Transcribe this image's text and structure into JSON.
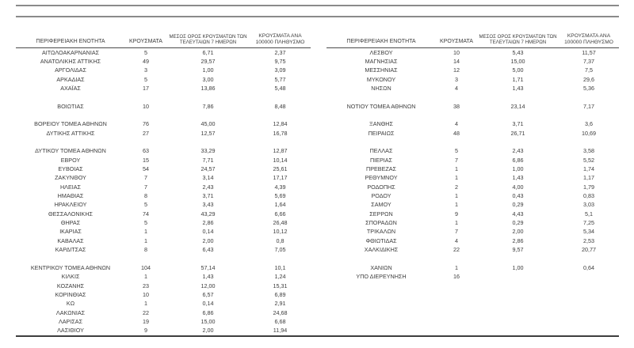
{
  "page": {
    "background": "#ffffff",
    "text_color": "#3c3c3c",
    "rule_color_light": "#8a8a8a",
    "rule_color_dark": "#3e3e3e"
  },
  "column_headers": {
    "region": "ΠΕΡΙΦΕΡΕΙΑΚΗ ΕΝΟΤΗΤΑ",
    "cases": "ΚΡΟΥΣΜΑΤΑ",
    "avg7": "ΜΕΣΟΣ ΟΡΟΣ ΚΡΟΥΣΜΑΤΩΝ ΤΩΝ ΤΕΛΕΥΤΑΙΩΝ 7 ΗΜΕΡΩΝ",
    "per100k": "ΚΡΟΥΣΜΑΤΑ ΑΝΑ 100000 ΠΛΗΘΥΣΜΟ"
  },
  "tables": [
    {
      "rows": [
        {
          "name": "ΑΙΤΩΛΟΑΚΑΡΝΑΝΙΑΣ",
          "cases": "5",
          "avg7": "6,71",
          "per100k": "2,37"
        },
        {
          "name": "ΑΝΑΤΟΛΙΚΗΣ ΑΤΤΙΚΗΣ",
          "cases": "49",
          "avg7": "29,57",
          "per100k": "9,75"
        },
        {
          "name": "ΑΡΓΟΛΙΔΑΣ",
          "cases": "3",
          "avg7": "1,00",
          "per100k": "3,09"
        },
        {
          "name": "ΑΡΚΑΔΙΑΣ",
          "cases": "5",
          "avg7": "3,00",
          "per100k": "5,77"
        },
        {
          "name": "ΑΧΑΪΑΣ",
          "cases": "17",
          "avg7": "13,86",
          "per100k": "5,48"
        },
        {
          "spacer": true
        },
        {
          "name": "ΒΟΙΩΤΙΑΣ",
          "cases": "10",
          "avg7": "7,86",
          "per100k": "8,48"
        },
        {
          "spacer": true
        },
        {
          "name": "ΒΟΡΕΙΟΥ ΤΟΜΕΑ ΑΘΗΝΩΝ",
          "cases": "76",
          "avg7": "45,00",
          "per100k": "12,84"
        },
        {
          "name": "ΔΥΤΙΚΗΣ ΑΤΤΙΚΗΣ",
          "cases": "27",
          "avg7": "12,57",
          "per100k": "16,78"
        },
        {
          "spacer": true
        },
        {
          "name": "ΔΥΤΙΚΟΥ ΤΟΜΕΑ ΑΘΗΝΩΝ",
          "cases": "63",
          "avg7": "33,29",
          "per100k": "12,87"
        },
        {
          "name": "ΕΒΡΟΥ",
          "cases": "15",
          "avg7": "7,71",
          "per100k": "10,14"
        },
        {
          "name": "ΕΥΒΟΙΑΣ",
          "cases": "54",
          "avg7": "24,57",
          "per100k": "25,61"
        },
        {
          "name": "ΖΑΚΥΝΘΟΥ",
          "cases": "7",
          "avg7": "3,14",
          "per100k": "17,17"
        },
        {
          "name": "ΗΛΕΙΑΣ",
          "cases": "7",
          "avg7": "2,43",
          "per100k": "4,39"
        },
        {
          "name": "ΗΜΑΘΙΑΣ",
          "cases": "8",
          "avg7": "3,71",
          "per100k": "5,69"
        },
        {
          "name": "ΗΡΑΚΛΕΙΟΥ",
          "cases": "5",
          "avg7": "3,43",
          "per100k": "1,64"
        },
        {
          "name": "ΘΕΣΣΑΛΟΝΙΚΗΣ",
          "cases": "74",
          "avg7": "43,29",
          "per100k": "6,66"
        },
        {
          "name": "ΘΗΡΑΣ",
          "cases": "5",
          "avg7": "2,86",
          "per100k": "26,48"
        },
        {
          "name": "ΙΚΑΡΙΑΣ",
          "cases": "1",
          "avg7": "0,14",
          "per100k": "10,12"
        },
        {
          "name": "ΚΑΒΑΛΑΣ",
          "cases": "1",
          "avg7": "2,00",
          "per100k": "0,8"
        },
        {
          "name": "ΚΑΡΔΙΤΣΑΣ",
          "cases": "8",
          "avg7": "6,43",
          "per100k": "7,05"
        },
        {
          "spacer": true
        },
        {
          "name": "ΚΕΝΤΡΙΚΟΥ ΤΟΜΕΑ ΑΘΗΝΩΝ",
          "cases": "104",
          "avg7": "57,14",
          "per100k": "10,1"
        },
        {
          "name": "ΚΙΛΚΙΣ",
          "cases": "1",
          "avg7": "1,43",
          "per100k": "1,24"
        },
        {
          "name": "ΚΟΖΑΝΗΣ",
          "cases": "23",
          "avg7": "12,00",
          "per100k": "15,31"
        },
        {
          "name": "ΚΟΡΙΝΘΙΑΣ",
          "cases": "10",
          "avg7": "6,57",
          "per100k": "6,89"
        },
        {
          "name": "ΚΩ",
          "cases": "1",
          "avg7": "0,14",
          "per100k": "2,91"
        },
        {
          "name": "ΛΑΚΩΝΙΑΣ",
          "cases": "22",
          "avg7": "6,86",
          "per100k": "24,68"
        },
        {
          "name": "ΛΑΡΙΣΑΣ",
          "cases": "19",
          "avg7": "15,00",
          "per100k": "6,68"
        },
        {
          "name": "ΛΑΣΙΘΙΟΥ",
          "cases": "9",
          "avg7": "2,00",
          "per100k": "11,94"
        }
      ]
    },
    {
      "rows": [
        {
          "name": "ΛΕΣΒΟΥ",
          "cases": "10",
          "avg7": "5,43",
          "per100k": "11,57"
        },
        {
          "name": "ΜΑΓΝΗΣΙΑΣ",
          "cases": "14",
          "avg7": "15,00",
          "per100k": "7,37"
        },
        {
          "name": "ΜΕΣΣΗΝΙΑΣ",
          "cases": "12",
          "avg7": "5,00",
          "per100k": "7,5"
        },
        {
          "name": "ΜΥΚΟΝΟΥ",
          "cases": "3",
          "avg7": "1,71",
          "per100k": "29,6"
        },
        {
          "name": "ΝΗΣΩΝ",
          "cases": "4",
          "avg7": "1,43",
          "per100k": "5,36"
        },
        {
          "spacer": true
        },
        {
          "name": "ΝΟΤΙΟΥ ΤΟΜΕΑ ΑΘΗΝΩΝ",
          "cases": "38",
          "avg7": "23,14",
          "per100k": "7,17"
        },
        {
          "spacer": true
        },
        {
          "name": "ΞΑΝΘΗΣ",
          "cases": "4",
          "avg7": "3,71",
          "per100k": "3,6"
        },
        {
          "name": "ΠΕΙΡΑΙΩΣ",
          "cases": "48",
          "avg7": "26,71",
          "per100k": "10,69"
        },
        {
          "spacer": true
        },
        {
          "name": "ΠΕΛΛΑΣ",
          "cases": "5",
          "avg7": "2,43",
          "per100k": "3,58"
        },
        {
          "name": "ΠΙΕΡΙΑΣ",
          "cases": "7",
          "avg7": "6,86",
          "per100k": "5,52"
        },
        {
          "name": "ΠΡΕΒΕΖΑΣ",
          "cases": "1",
          "avg7": "1,00",
          "per100k": "1,74"
        },
        {
          "name": "ΡΕΘΥΜΝΟΥ",
          "cases": "1",
          "avg7": "1,43",
          "per100k": "1,17"
        },
        {
          "name": "ΡΟΔΟΠΗΣ",
          "cases": "2",
          "avg7": "4,00",
          "per100k": "1,79"
        },
        {
          "name": "ΡΟΔΟΥ",
          "cases": "1",
          "avg7": "0,43",
          "per100k": "0,83"
        },
        {
          "name": "ΣΑΜΟΥ",
          "cases": "1",
          "avg7": "0,29",
          "per100k": "3,03"
        },
        {
          "name": "ΣΕΡΡΩΝ",
          "cases": "9",
          "avg7": "4,43",
          "per100k": "5,1"
        },
        {
          "name": "ΣΠΟΡΑΔΩΝ",
          "cases": "1",
          "avg7": "0,29",
          "per100k": "7,25"
        },
        {
          "name": "ΤΡΙΚΑΛΩΝ",
          "cases": "7",
          "avg7": "2,00",
          "per100k": "5,34"
        },
        {
          "name": "ΦΘΙΩΤΙΔΑΣ",
          "cases": "4",
          "avg7": "2,86",
          "per100k": "2,53"
        },
        {
          "name": "ΧΑΛΚΙΔΙΚΗΣ",
          "cases": "22",
          "avg7": "9,57",
          "per100k": "20,77"
        },
        {
          "spacer": true
        },
        {
          "name": "ΧΑΝΙΩΝ",
          "cases": "1",
          "avg7": "1,00",
          "per100k": "0,64"
        },
        {
          "name": "ΥΠΟ ΔΙΕΡΕΥΝΗΣΗ",
          "cases": "16",
          "avg7": "",
          "per100k": ""
        }
      ]
    }
  ]
}
